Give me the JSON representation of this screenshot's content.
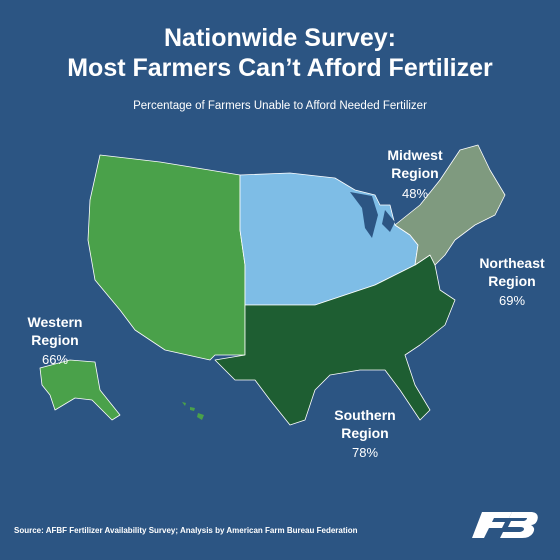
{
  "header": {
    "title_lines": [
      "Nationwide Survey:",
      "Most Farmers Can’t Afford Fertilizer"
    ],
    "subtitle": "Percentage of Farmers Unable to Afford Needed Fertilizer"
  },
  "regions": [
    {
      "lines": [
        "Midwest",
        "Region"
      ],
      "percent": "48%"
    },
    {
      "lines": [
        "Northeast",
        "Region"
      ],
      "percent": "69%"
    },
    {
      "lines": [
        "Western",
        "Region"
      ],
      "percent": "66%"
    },
    {
      "lines": [
        "Southern",
        "Region"
      ],
      "percent": "78%"
    }
  ],
  "footer": {
    "source": "Source: AFBF Fertilizer Availability Survey; Analysis by American Farm Bureau Federation"
  }
}
